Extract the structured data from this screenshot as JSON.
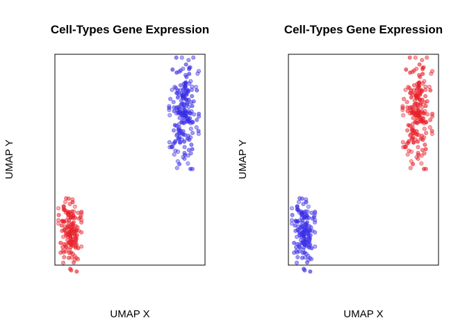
{
  "chart_data": [
    {
      "type": "scatter",
      "title": "Cell-Types Gene Expression",
      "xlabel": "UMAP X",
      "ylabel": "UMAP Y",
      "grid": false,
      "series": [
        {
          "color": "#e8202a",
          "count": 150,
          "center": {
            "x": 0.1,
            "y": 0.15
          },
          "spread": {
            "x": 0.035,
            "y": 0.082
          }
        },
        {
          "color": "#3a2ee6",
          "count": 200,
          "center": {
            "x": 0.86,
            "y": 0.72
          },
          "spread": {
            "x": 0.045,
            "y": 0.12
          }
        }
      ]
    },
    {
      "type": "scatter",
      "title": "Cell-Types Gene Expression",
      "xlabel": "UMAP X",
      "ylabel": "UMAP Y",
      "grid": false,
      "series": [
        {
          "color": "#3a2ee6",
          "count": 150,
          "center": {
            "x": 0.1,
            "y": 0.15
          },
          "spread": {
            "x": 0.035,
            "y": 0.082
          }
        },
        {
          "color": "#e8202a",
          "count": 200,
          "center": {
            "x": 0.86,
            "y": 0.72
          },
          "spread": {
            "x": 0.045,
            "y": 0.12
          }
        }
      ]
    }
  ]
}
